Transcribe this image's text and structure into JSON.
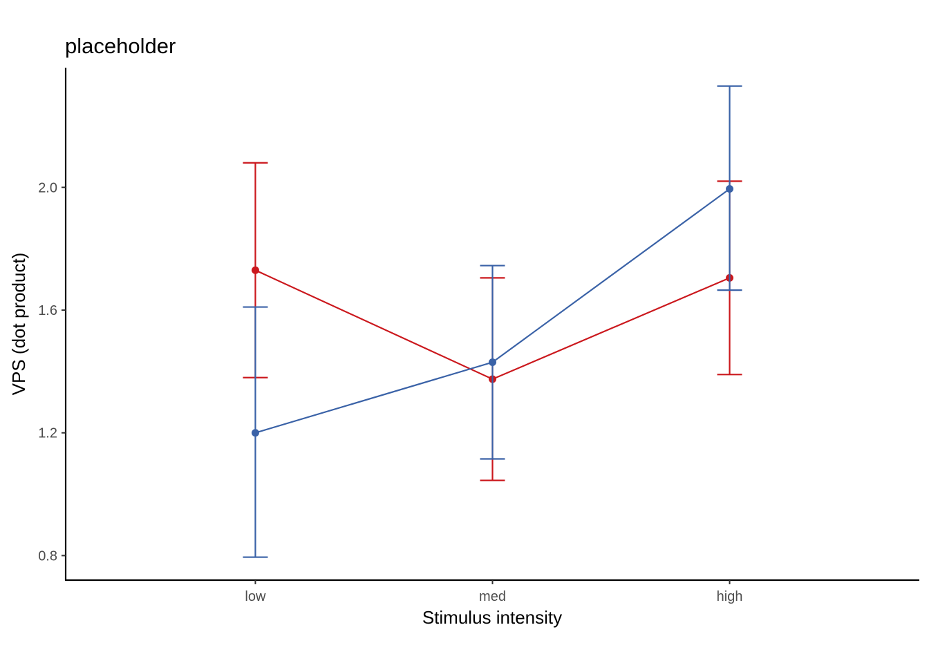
{
  "chart_data": {
    "type": "line",
    "title": "placeholder",
    "xlabel": "Stimulus intensity",
    "ylabel": "VPS  (dot product)",
    "categories": [
      "low",
      "med",
      "high"
    ],
    "yticks": [
      "0.8",
      "1.2",
      "1.6",
      "2.0"
    ],
    "ylim": [
      0.72,
      2.39
    ],
    "grid": false,
    "legend": "none",
    "series": [
      {
        "color": "#CB181D",
        "values": [
          1.73,
          1.375,
          1.705
        ],
        "lower": [
          1.38,
          1.045,
          1.39
        ],
        "upper": [
          2.08,
          1.705,
          2.02
        ]
      },
      {
        "color": "#3A62A7",
        "values": [
          1.2,
          1.43,
          1.995
        ],
        "lower": [
          0.795,
          1.115,
          1.665
        ],
        "upper": [
          1.61,
          1.745,
          2.33
        ]
      }
    ]
  }
}
